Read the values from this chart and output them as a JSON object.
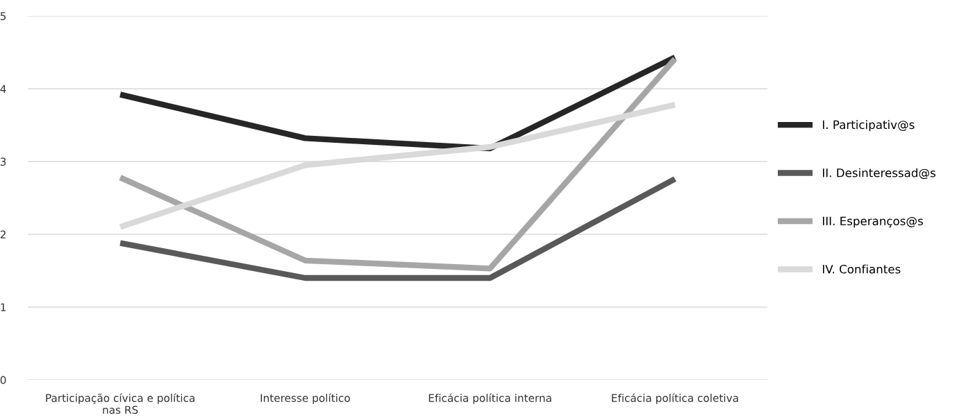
{
  "chart_data": {
    "type": "line",
    "categories": [
      "Participação cívica e política\nnas RS",
      "Interesse político",
      "Eficácia política interna",
      "Eficácia política coletiva"
    ],
    "series": [
      {
        "name": "I. Participativ@s",
        "color": "#262626",
        "values": [
          3.92,
          3.32,
          3.18,
          4.43
        ]
      },
      {
        "name": "II. Desinteressad@s",
        "color": "#595959",
        "values": [
          1.88,
          1.4,
          1.4,
          2.76
        ]
      },
      {
        "name": "III. Esperanços@s",
        "color": "#a6a6a6",
        "values": [
          2.78,
          1.64,
          1.53,
          4.41
        ]
      },
      {
        "name": "IV. Confiantes",
        "color": "#d9d9d9",
        "values": [
          2.1,
          2.95,
          3.2,
          3.78
        ]
      }
    ],
    "ylim": [
      0,
      5
    ],
    "yticks": [
      0,
      1,
      2,
      3,
      4,
      5
    ],
    "grid": "y",
    "legend": "right",
    "marker": "none",
    "line_style": "solid"
  }
}
